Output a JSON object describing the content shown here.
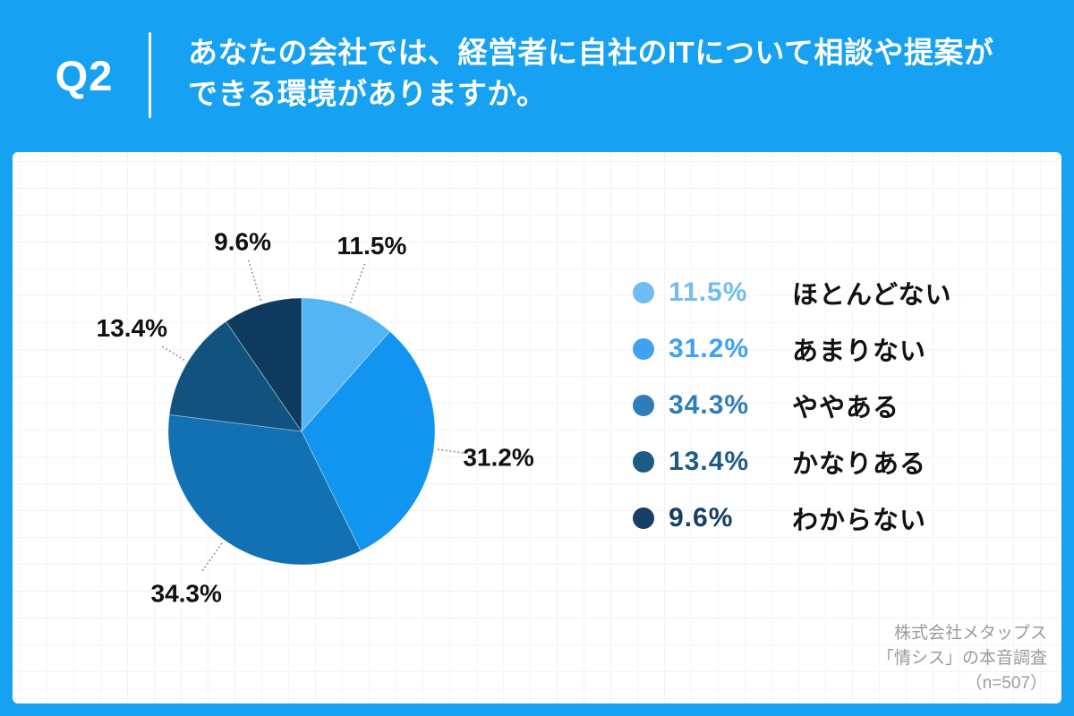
{
  "header": {
    "question_number": "Q2",
    "question_line1": "あなたの会社では、経営者に自社のITについて相談や提案が",
    "question_line2": "できる環境がありますか。"
  },
  "chart_data": {
    "type": "pie",
    "title": "あなたの会社では、経営者に自社のITについて相談や提案ができる環境がありますか。",
    "start_angle_deg": 0,
    "direction": "clockwise",
    "legend_position": "right",
    "items": [
      {
        "label": "ほとんどない",
        "value": 11.5,
        "display": "11.5%",
        "pie_color": "#54B5F4",
        "legend_color": "#6FBDF4"
      },
      {
        "label": "あまりない",
        "value": 31.2,
        "display": "31.2%",
        "pie_color": "#1295F0",
        "legend_color": "#41A0F0"
      },
      {
        "label": "ややある",
        "value": 34.3,
        "display": "34.3%",
        "pie_color": "#1271B3",
        "legend_color": "#2F7CB8"
      },
      {
        "label": "かなりある",
        "value": 13.4,
        "display": "13.4%",
        "pie_color": "#11527E",
        "legend_color": "#1E5A86"
      },
      {
        "label": "わからない",
        "value": 9.6,
        "display": "9.6%",
        "pie_color": "#0E3A5F",
        "legend_color": "#163E67"
      }
    ]
  },
  "source": {
    "line1": "株式会社メタップス",
    "line2": "「情シス」の本音調査",
    "line3": "（n=507）"
  },
  "colors": {
    "page_bg": "#17A1F2",
    "card_bg": "#FFFFFF",
    "grid_line": "#F4F3F8",
    "pie_label_text": "#111111",
    "leader_line": "#8C8C8C",
    "source_text": "#9B9B9B",
    "header_text": "#FFFFFF"
  }
}
